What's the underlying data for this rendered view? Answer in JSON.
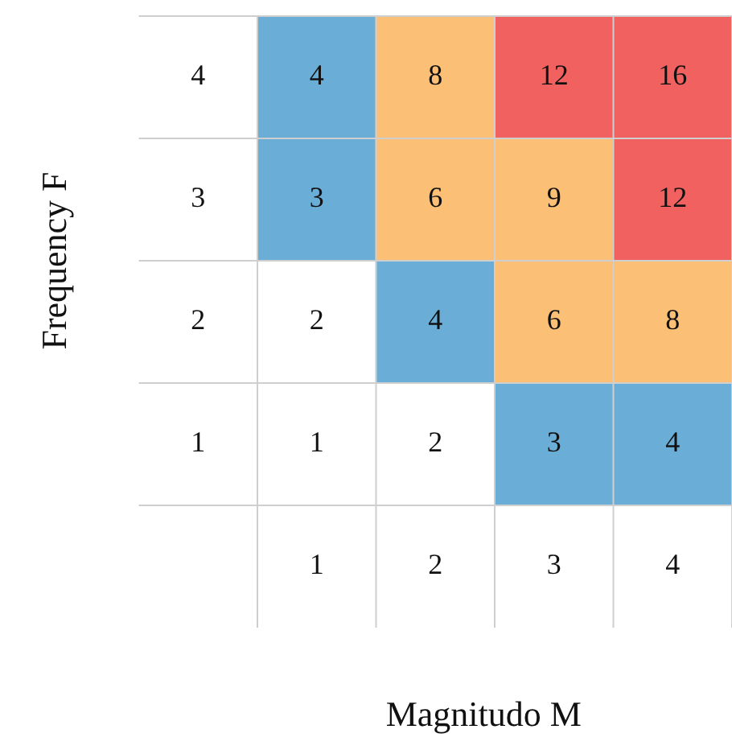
{
  "chart_data": {
    "type": "heatmap",
    "xlabel": "Magnitudo M",
    "ylabel": "Frequency F",
    "categories": [
      "1",
      "2",
      "3",
      "4"
    ],
    "y_categories": [
      "4",
      "3",
      "2",
      "1"
    ],
    "cells": [
      [
        4,
        8,
        12,
        16
      ],
      [
        3,
        6,
        9,
        12
      ],
      [
        2,
        4,
        6,
        8
      ],
      [
        1,
        2,
        3,
        4
      ]
    ],
    "colors": [
      [
        "#6aaed8",
        "#fcbf76",
        "#f0615f",
        "#f0615f"
      ],
      [
        "#6aaed8",
        "#fcbf76",
        "#fcbf76",
        "#f0615f"
      ],
      [
        "#ffffff",
        "#6aaed8",
        "#fcbf76",
        "#fcbf76"
      ],
      [
        "#ffffff",
        "#ffffff",
        "#6aaed8",
        "#6aaed8"
      ]
    ],
    "data_labels": true,
    "grid": true
  }
}
